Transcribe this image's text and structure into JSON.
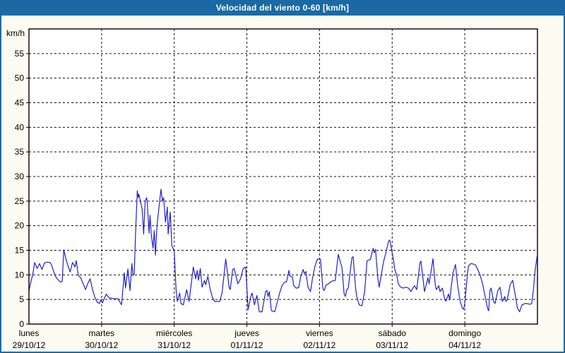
{
  "window": {
    "title": "Velocidad del viento 0-60 [km/h]"
  },
  "colors": {
    "titlebar_bg": "#1a69a4",
    "titlebar_text": "#ffffff",
    "outer_border": "#1e6ca7",
    "page_bg": "#fbfbf1",
    "plot_bg": "#ffffff",
    "plot_border": "#000000",
    "grid": "#111111",
    "line": "#2121cd"
  },
  "chart_data": {
    "type": "line",
    "title": "Velocidad del viento 0-60 [km/h]",
    "ylabel": "km/h",
    "xlabel": "",
    "ylim": [
      0,
      60
    ],
    "y_tick_step": 5,
    "y_tick_labels": [
      0,
      5,
      10,
      15,
      20,
      25,
      30,
      35,
      40,
      45,
      50,
      55
    ],
    "grid": "dashed",
    "legend": "none",
    "x_days": [
      {
        "name": "lunes",
        "date": "29/10/12"
      },
      {
        "name": "martes",
        "date": "30/10/12"
      },
      {
        "name": "miércoles",
        "date": "31/10/12"
      },
      {
        "name": "jueves",
        "date": "01/11/12"
      },
      {
        "name": "viernes",
        "date": "02/11/12"
      },
      {
        "name": "sábado",
        "date": "03/11/12"
      },
      {
        "name": "domingo",
        "date": "04/11/12"
      }
    ],
    "x_unit": "hours_from_start",
    "x_range_hours": [
      0,
      168
    ],
    "series": [
      {
        "name": "Velocidad del viento",
        "unit": "km/h",
        "color": "#2121cd",
        "points": [
          [
            0,
            6.8
          ],
          [
            0.6,
            8.5
          ],
          [
            1.2,
            9.9
          ],
          [
            1.9,
            12.5
          ],
          [
            2.7,
            11.3
          ],
          [
            3.5,
            12.3
          ],
          [
            4.3,
            11.1
          ],
          [
            5.1,
            12.4
          ],
          [
            6,
            12.6
          ],
          [
            7,
            12.5
          ],
          [
            7.4,
            12.1
          ],
          [
            8.6,
            9.9
          ],
          [
            9.3,
            9.2
          ],
          [
            10.5,
            8.5
          ],
          [
            11,
            8.7
          ],
          [
            11.5,
            15.1
          ],
          [
            12.4,
            12.8
          ],
          [
            13.2,
            11.3
          ],
          [
            13.6,
            10.6
          ],
          [
            14.4,
            12.5
          ],
          [
            15.2,
            11.6
          ],
          [
            15.6,
            12.9
          ],
          [
            16.3,
            9.9
          ],
          [
            17.1,
            9.4
          ],
          [
            17.9,
            8.2
          ],
          [
            18.7,
            7
          ],
          [
            19.4,
            8.2
          ],
          [
            20.2,
            9.2
          ],
          [
            21,
            7
          ],
          [
            21.8,
            5.4
          ],
          [
            22.6,
            4.4
          ],
          [
            23.3,
            4.2
          ],
          [
            23.7,
            4.9
          ],
          [
            24.3,
            4.3
          ],
          [
            25.5,
            6.1
          ],
          [
            26.5,
            5.3
          ],
          [
            28,
            5.2
          ],
          [
            29.5,
            5.1
          ],
          [
            30.6,
            3.9
          ],
          [
            31.5,
            10.4
          ],
          [
            31.9,
            7.3
          ],
          [
            32.7,
            11.2
          ],
          [
            33.4,
            6.8
          ],
          [
            34,
            12.3
          ],
          [
            34.4,
            9.9
          ],
          [
            34.8,
            10.2
          ],
          [
            35.2,
            18.3
          ],
          [
            35.8,
            27.1
          ],
          [
            36.1,
            25.7
          ],
          [
            36.3,
            26.4
          ],
          [
            37,
            24.5
          ],
          [
            37.4,
            23.3
          ],
          [
            37.9,
            18.3
          ],
          [
            38.4,
            25
          ],
          [
            38.9,
            25.7
          ],
          [
            39.2,
            23.5
          ],
          [
            39.7,
            18.5
          ],
          [
            40,
            22.1
          ],
          [
            40.4,
            18.3
          ],
          [
            41,
            15.4
          ],
          [
            41.4,
            19
          ],
          [
            41.8,
            14
          ],
          [
            42.3,
            20
          ],
          [
            43.6,
            27.4
          ],
          [
            44.1,
            25
          ],
          [
            44.5,
            25.7
          ],
          [
            45.1,
            20.7
          ],
          [
            45.7,
            23.8
          ],
          [
            46,
            18.3
          ],
          [
            46.7,
            22.8
          ],
          [
            47.2,
            15.9
          ],
          [
            48,
            14.9
          ],
          [
            48.6,
            7
          ],
          [
            49,
            4.6
          ],
          [
            49.8,
            6.3
          ],
          [
            50.2,
            4.2
          ],
          [
            51,
            3.9
          ],
          [
            52.1,
            7
          ],
          [
            52.9,
            4.6
          ],
          [
            54.3,
            11.6
          ],
          [
            55.1,
            9.2
          ],
          [
            55.6,
            10.9
          ],
          [
            56,
            8.9
          ],
          [
            56.6,
            11.3
          ],
          [
            57.2,
            7.5
          ],
          [
            58,
            8.9
          ],
          [
            58.4,
            8
          ],
          [
            59.1,
            9.7
          ],
          [
            59.9,
            7
          ],
          [
            60.7,
            5.3
          ],
          [
            61.4,
            4.6
          ],
          [
            63,
            4.6
          ],
          [
            63.8,
            6.3
          ],
          [
            65,
            13.2
          ],
          [
            65.6,
            10.4
          ],
          [
            66.1,
            7.5
          ],
          [
            66.5,
            7
          ],
          [
            67.3,
            11.1
          ],
          [
            67.8,
            11.3
          ],
          [
            69,
            8.2
          ],
          [
            69.9,
            9.2
          ],
          [
            70.8,
            11.3
          ],
          [
            71.6,
            11.6
          ],
          [
            72.4,
            2.9
          ],
          [
            73.3,
            5.6
          ],
          [
            73.7,
            6.3
          ],
          [
            74.5,
            3.9
          ],
          [
            75.3,
            5.8
          ],
          [
            76.1,
            2.5
          ],
          [
            77,
            2.5
          ],
          [
            78.2,
            6.6
          ],
          [
            78.6,
            6.8
          ],
          [
            79,
            5.6
          ],
          [
            79.4,
            6.6
          ],
          [
            80.1,
            2.7
          ],
          [
            81.2,
            2.5
          ],
          [
            82.1,
            4.6
          ],
          [
            82.8,
            6.3
          ],
          [
            83.6,
            7.8
          ],
          [
            84.4,
            8.5
          ],
          [
            85.1,
            8.6
          ],
          [
            85.9,
            10.9
          ],
          [
            86.3,
            9.7
          ],
          [
            87,
            9.6
          ],
          [
            87.5,
            7.8
          ],
          [
            88.3,
            7.3
          ],
          [
            89.1,
            7.4
          ],
          [
            89.8,
            9.7
          ],
          [
            90.6,
            11.1
          ],
          [
            91,
            10.2
          ],
          [
            91.5,
            10.7
          ],
          [
            92.2,
            7.5
          ],
          [
            93,
            6.6
          ],
          [
            93.7,
            9.4
          ],
          [
            94.5,
            11.8
          ],
          [
            95.3,
            13.2
          ],
          [
            96.3,
            13.2
          ],
          [
            97.1,
            7.3
          ],
          [
            97.5,
            6.8
          ],
          [
            98.2,
            8
          ],
          [
            99,
            8.2
          ],
          [
            100,
            8.7
          ],
          [
            101.2,
            8.9
          ],
          [
            102.2,
            14.2
          ],
          [
            103,
            12.3
          ],
          [
            103.4,
            11.6
          ],
          [
            104.1,
            6.3
          ],
          [
            104.5,
            5.6
          ],
          [
            105,
            7
          ],
          [
            105.5,
            7.3
          ],
          [
            106.7,
            13.5
          ],
          [
            107.1,
            13.7
          ],
          [
            107.9,
            7.5
          ],
          [
            108.3,
            5.6
          ],
          [
            109.1,
            3.9
          ],
          [
            110,
            3.7
          ],
          [
            110.9,
            6.6
          ],
          [
            111.7,
            12.8
          ],
          [
            112.1,
            13
          ],
          [
            112.8,
            13.1
          ],
          [
            113.7,
            15.4
          ],
          [
            114.1,
            14.5
          ],
          [
            114.5,
            15.2
          ],
          [
            115.3,
            9.2
          ],
          [
            115.7,
            7.5
          ],
          [
            116.4,
            10.1
          ],
          [
            117.2,
            12.8
          ],
          [
            118,
            14.7
          ],
          [
            118.8,
            16.8
          ],
          [
            119.2,
            17.1
          ],
          [
            120.4,
            13.2
          ],
          [
            120.8,
            11.3
          ],
          [
            121.6,
            9.7
          ],
          [
            122,
            8.2
          ],
          [
            122.8,
            7.5
          ],
          [
            123.7,
            7.3
          ],
          [
            124.5,
            7.5
          ],
          [
            125.4,
            7.3
          ],
          [
            126.2,
            6.6
          ],
          [
            127,
            7.5
          ],
          [
            127.4,
            7.8
          ],
          [
            128.1,
            7
          ],
          [
            129.2,
            12.5
          ],
          [
            129.5,
            12.8
          ],
          [
            130.7,
            6.6
          ],
          [
            131.8,
            9.4
          ],
          [
            132.2,
            8.2
          ],
          [
            133.5,
            13.3
          ],
          [
            134.2,
            8.2
          ],
          [
            134.6,
            7
          ],
          [
            135.4,
            7.8
          ],
          [
            135.8,
            6.6
          ],
          [
            136.6,
            7.3
          ],
          [
            137.4,
            4.9
          ],
          [
            137.8,
            4.7
          ],
          [
            138.6,
            6.1
          ],
          [
            139,
            4.9
          ],
          [
            140.1,
            10.4
          ],
          [
            140.9,
            12.1
          ],
          [
            141.7,
            7.5
          ],
          [
            142.5,
            4.6
          ],
          [
            143.2,
            3.2
          ],
          [
            143.6,
            3
          ],
          [
            144,
            4.2
          ],
          [
            144.8,
            9.7
          ],
          [
            145.2,
            11.8
          ],
          [
            146,
            12.3
          ],
          [
            146.8,
            12.2
          ],
          [
            147.6,
            12
          ],
          [
            148.4,
            10.9
          ],
          [
            149.2,
            9.7
          ],
          [
            150,
            7.8
          ],
          [
            150.7,
            5.6
          ],
          [
            151.5,
            3.2
          ],
          [
            151.9,
            2.7
          ],
          [
            152.3,
            6.8
          ],
          [
            152.7,
            7.3
          ],
          [
            153.5,
            4.6
          ],
          [
            154,
            4.2
          ],
          [
            154.9,
            6.8
          ],
          [
            155.6,
            7.5
          ],
          [
            156.4,
            4.6
          ],
          [
            157.2,
            5.6
          ],
          [
            157.6,
            4.6
          ],
          [
            158,
            4.9
          ],
          [
            159,
            8
          ],
          [
            159.8,
            8.9
          ],
          [
            160.6,
            6.1
          ],
          [
            161.4,
            3.2
          ],
          [
            162.1,
            2.5
          ],
          [
            162.9,
            3.9
          ],
          [
            164,
            4.2
          ],
          [
            165,
            4.1
          ],
          [
            165.6,
            4
          ],
          [
            166.1,
            4.2
          ],
          [
            166.6,
            6.6
          ],
          [
            167.3,
            11.3
          ],
          [
            167.9,
            13.8
          ]
        ]
      }
    ]
  }
}
